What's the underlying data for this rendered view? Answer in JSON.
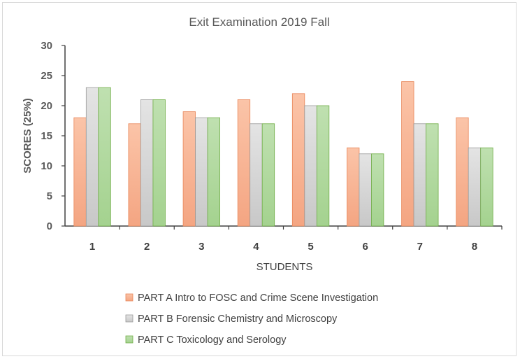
{
  "chart_data": {
    "type": "bar",
    "title": "Exit Examination 2019 Fall",
    "xlabel": "STUDENTS",
    "ylabel": "SCORES (25%)",
    "categories": [
      "1",
      "2",
      "3",
      "4",
      "5",
      "6",
      "7",
      "8"
    ],
    "ylim": [
      0,
      30
    ],
    "yticks": [
      0,
      5,
      10,
      15,
      20,
      25,
      30
    ],
    "grid": false,
    "legend_position": "bottom",
    "series": [
      {
        "name": "PART A Intro to FOSC and Crime Scene Investigation",
        "values": [
          18,
          17,
          19,
          21,
          22,
          13,
          24,
          18
        ],
        "color_top": "#fbc4a8",
        "color_bottom": "#f4a582",
        "stroke": "#e8875a"
      },
      {
        "name": "PART B Forensic Chemistry and Microscopy",
        "values": [
          23,
          21,
          18,
          17,
          20,
          12,
          17,
          13
        ],
        "color_top": "#e4e4e4",
        "color_bottom": "#c8c8c8",
        "stroke": "#9a9a9a"
      },
      {
        "name": "PART C Toxicology and Serology",
        "values": [
          23,
          21,
          18,
          17,
          20,
          12,
          17,
          13
        ],
        "color_top": "#bfe0b0",
        "color_bottom": "#a4d28f",
        "stroke": "#70ad47"
      }
    ]
  }
}
